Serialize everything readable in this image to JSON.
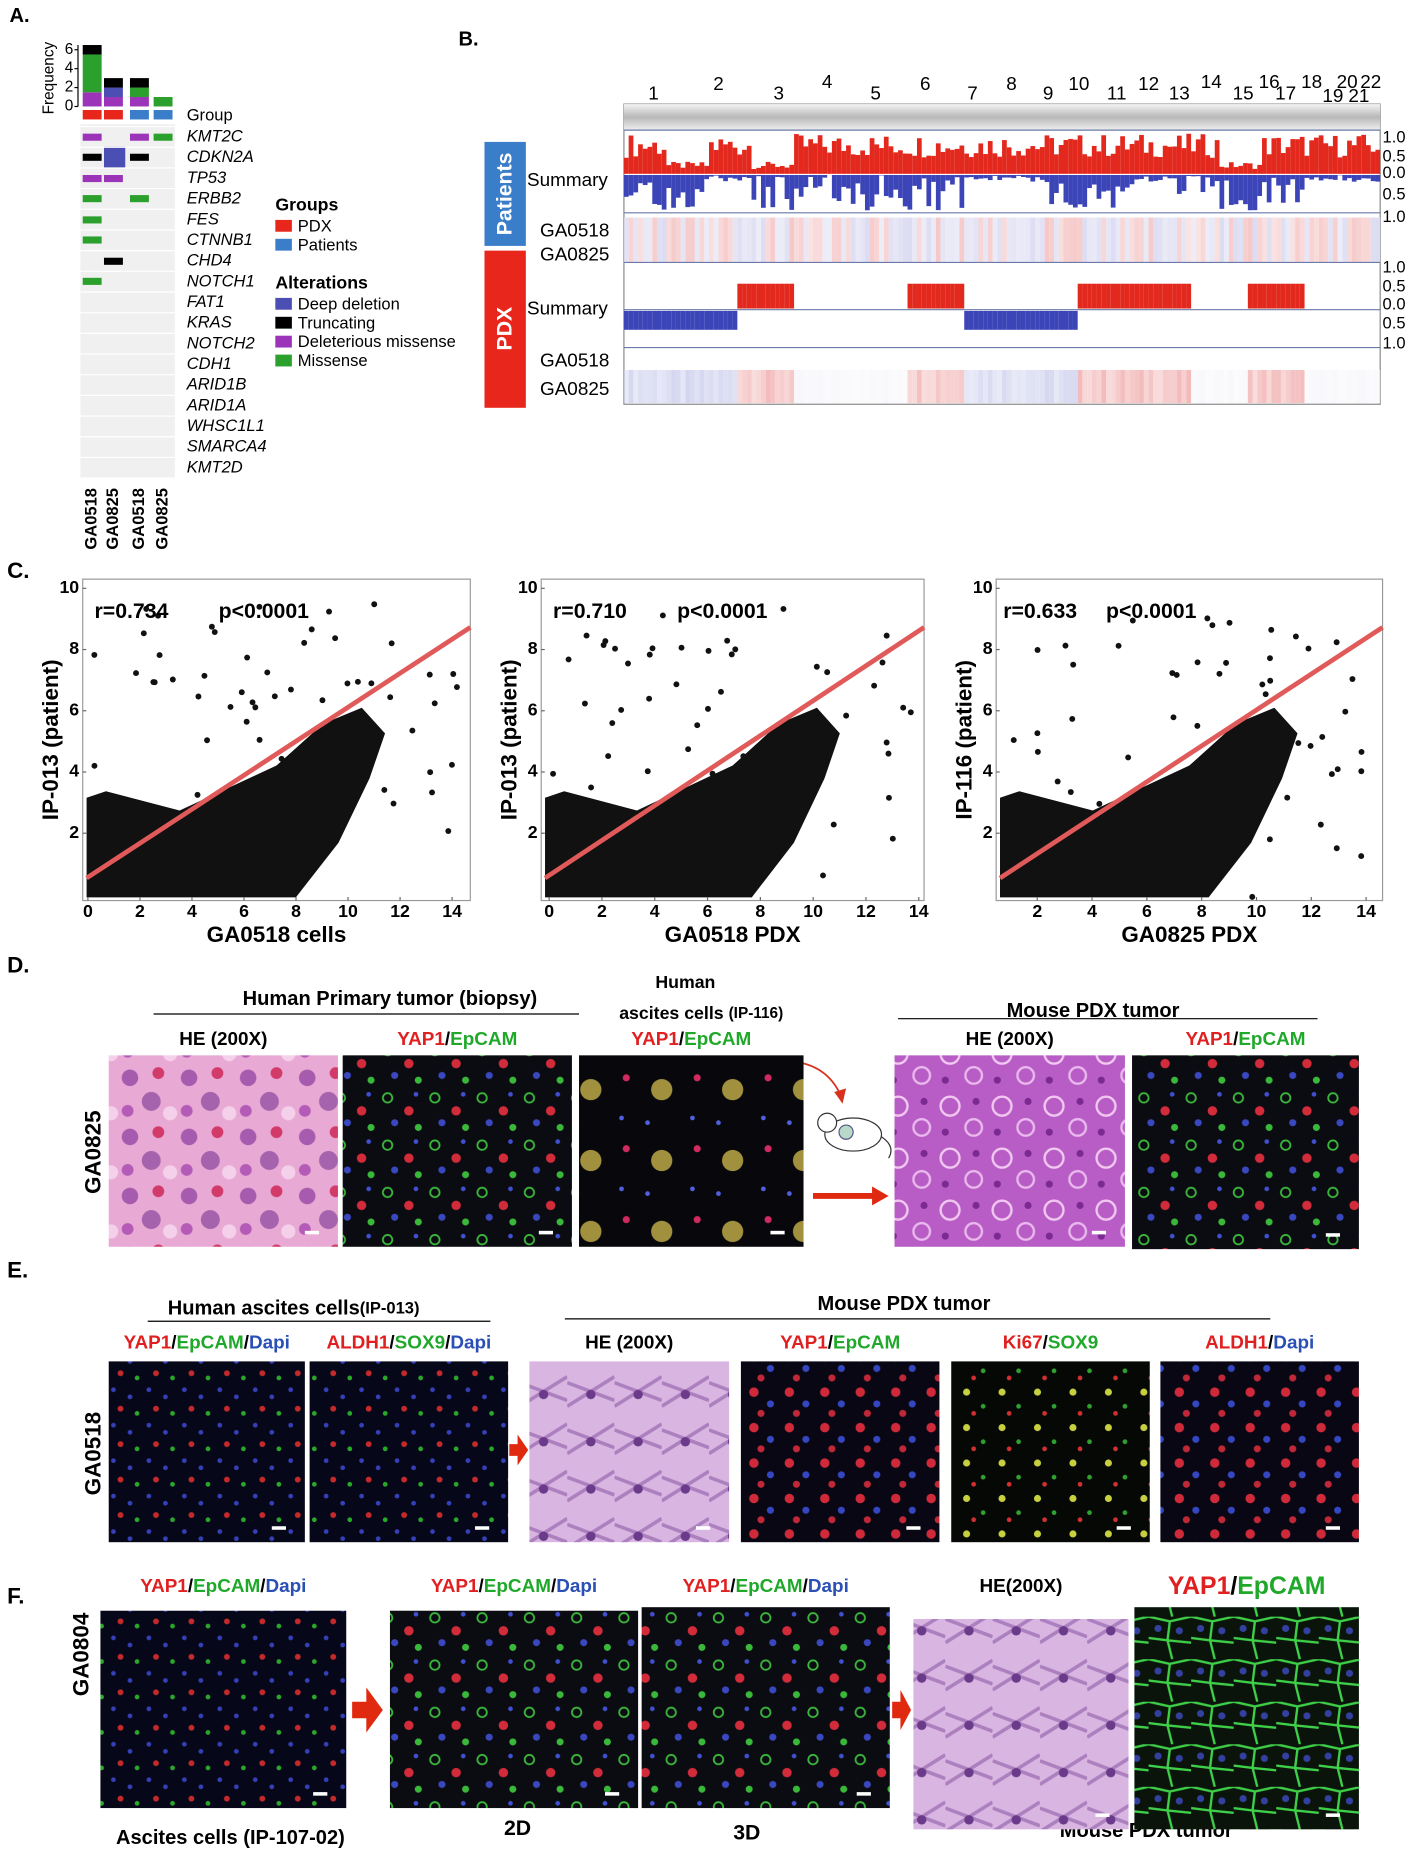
{
  "panel_labels": {
    "a": "A.",
    "b": "B.",
    "c": "C.",
    "d": "D.",
    "e": "E.",
    "f": "F."
  },
  "panel_a": {
    "frequency": {
      "ylabel": "Frequency",
      "ylim": [
        0,
        7
      ],
      "yticks": [
        0,
        2,
        4,
        6
      ],
      "series": [
        {
          "name": "Deep deletion",
          "color": "#4b4fb3",
          "values": [
            0,
            1,
            0,
            0
          ]
        },
        {
          "name": "Truncating",
          "color": "#000000",
          "values": [
            1,
            1,
            1,
            0
          ]
        },
        {
          "name": "Deleterious missense",
          "color": "#9b34b8",
          "values": [
            1.5,
            1,
            1,
            0
          ]
        },
        {
          "name": "Missense",
          "color": "#2ca02c",
          "values": [
            4,
            0,
            1,
            1
          ]
        }
      ]
    },
    "group_label": "Group",
    "genes": [
      "KMT2C",
      "CDKN2A",
      "TP53",
      "ERBB2",
      "FES",
      "CTNNB1",
      "CHD4",
      "NOTCH1",
      "FAT1",
      "KRAS",
      "NOTCH2",
      "CDH1",
      "ARID1B",
      "ARID1A",
      "WHSC1L1",
      "SMARCA4",
      "KMT2D"
    ],
    "columns": [
      "GA0518",
      "GA0825",
      "GA0518",
      "GA0825"
    ],
    "groups_title": "Groups",
    "groups": [
      {
        "name": "PDX",
        "color": "#e8261c"
      },
      {
        "name": "Patients",
        "color": "#3a7dc9"
      }
    ],
    "alterations_title": "Alterations"
  },
  "panel_b": {
    "chromosomes": [
      "1",
      "2",
      "3",
      "4",
      "5",
      "6",
      "7",
      "8",
      "9",
      "10",
      "11",
      "12",
      "13",
      "14",
      "15",
      "16",
      "17",
      "18",
      "19",
      "20",
      "21",
      "22"
    ],
    "groups": [
      "Patients",
      "PDX"
    ],
    "rows": [
      "Summary",
      "GA0518",
      "GA0825"
    ],
    "scale_labels": [
      "1.0",
      "0.5",
      "0.0",
      "0.5",
      "1.0"
    ]
  },
  "panel_c": [
    {
      "r": "r=0.734",
      "p": "p<0.0001",
      "xlabel": "GA0518 cells",
      "ylabel": "IP-013 (patient)",
      "xlim": [
        -0.2,
        14.7
      ],
      "ylim": [
        -0.2,
        10.3
      ],
      "xticks": [
        0,
        2,
        4,
        6,
        8,
        10,
        12,
        14
      ],
      "yticks": [
        2,
        4,
        6,
        8,
        10
      ]
    },
    {
      "r": "r=0.710",
      "p": "p<0.0001",
      "xlabel": "GA0518 PDX",
      "ylabel": "IP-013 (patient)",
      "xlim": [
        -0.3,
        14.2
      ],
      "ylim": [
        -0.2,
        10.3
      ],
      "xticks": [
        0,
        2,
        4,
        6,
        8,
        10,
        12,
        14
      ],
      "yticks": [
        2,
        4,
        6,
        8,
        10
      ]
    },
    {
      "r": "r=0.633",
      "p": "p<0.0001",
      "xlabel": "GA0825 PDX",
      "ylabel": "IP-116 (patient)",
      "xlim": [
        0.5,
        14.6
      ],
      "ylim": [
        -0.2,
        10.3
      ],
      "xticks": [
        2,
        4,
        6,
        8,
        10,
        12,
        14
      ],
      "yticks": [
        2,
        4,
        6,
        8,
        10
      ]
    }
  ],
  "panel_d": {
    "title_left": "Human Primary tumor (biopsy)",
    "ascites_title": "Human",
    "ascites_sub": "ascites cells",
    "ascites_id": "(IP-116)",
    "title_right": "Mouse PDX tumor",
    "sample": "GA0825",
    "images": [
      {
        "label": [
          {
            "text": "HE (200X)",
            "color": "#000000"
          }
        ]
      },
      {
        "label": [
          {
            "text": "YAP1",
            "color": "#e02020"
          },
          {
            "text": "/",
            "color": "#000000"
          },
          {
            "text": "EpCAM",
            "color": "#1fa82a"
          }
        ]
      },
      {
        "label": [
          {
            "text": "YAP1",
            "color": "#e02020"
          },
          {
            "text": "/",
            "color": "#000000"
          },
          {
            "text": "EpCAM",
            "color": "#1fa82a"
          }
        ]
      },
      {
        "label": [
          {
            "text": "HE (200X)",
            "color": "#000000"
          }
        ]
      },
      {
        "label": [
          {
            "text": "YAP1",
            "color": "#e02020"
          },
          {
            "text": "/",
            "color": "#000000"
          },
          {
            "text": "EpCAM",
            "color": "#1fa82a"
          }
        ]
      }
    ]
  },
  "panel_e": {
    "title_left": "Human ascites cells",
    "title_left_id": "(IP-013)",
    "title_right": "Mouse PDX tumor",
    "sample": "GA0518",
    "images": [
      {
        "label": [
          {
            "text": "YAP1",
            "color": "#e02020"
          },
          {
            "text": "/",
            "color": "#000000"
          },
          {
            "text": "EpCAM",
            "color": "#1fa82a"
          },
          {
            "text": "/",
            "color": "#000000"
          },
          {
            "text": "Dapi",
            "color": "#2a4fb5"
          }
        ]
      },
      {
        "label": [
          {
            "text": "ALDH1",
            "color": "#e02020"
          },
          {
            "text": "/",
            "color": "#000000"
          },
          {
            "text": "SOX9",
            "color": "#1fa82a"
          },
          {
            "text": "/",
            "color": "#000000"
          },
          {
            "text": "Dapi",
            "color": "#2a4fb5"
          }
        ]
      },
      {
        "label": [
          {
            "text": "HE (200X)",
            "color": "#000000"
          }
        ]
      },
      {
        "label": [
          {
            "text": "YAP1",
            "color": "#e02020"
          },
          {
            "text": "/",
            "color": "#000000"
          },
          {
            "text": "EpCAM",
            "color": "#1fa82a"
          }
        ]
      },
      {
        "label": [
          {
            "text": "Ki67",
            "color": "#e02020"
          },
          {
            "text": "/",
            "color": "#000000"
          },
          {
            "text": "SOX9",
            "color": "#1fa82a"
          }
        ]
      },
      {
        "label": [
          {
            "text": "ALDH1",
            "color": "#e02020"
          },
          {
            "text": "/",
            "color": "#000000"
          },
          {
            "text": "Dapi",
            "color": "#2a4fb5"
          }
        ]
      }
    ]
  },
  "panel_f": {
    "sample": "GA0804",
    "captions": [
      "Ascites cells (IP-107-02)",
      "2D",
      "3D",
      "Mouse PDX tumor"
    ],
    "images": [
      {
        "label": [
          {
            "text": "YAP1",
            "color": "#e02020"
          },
          {
            "text": "/",
            "color": "#000000"
          },
          {
            "text": "EpCAM",
            "color": "#1fa82a"
          },
          {
            "text": "/",
            "color": "#000000"
          },
          {
            "text": "Dapi",
            "color": "#2a4fb5"
          }
        ]
      },
      {
        "label": [
          {
            "text": "YAP1",
            "color": "#e02020"
          },
          {
            "text": "/",
            "color": "#000000"
          },
          {
            "text": "EpCAM",
            "color": "#1fa82a"
          },
          {
            "text": "/",
            "color": "#000000"
          },
          {
            "text": "Dapi",
            "color": "#2a4fb5"
          }
        ]
      },
      {
        "label": [
          {
            "text": "YAP1",
            "color": "#e02020"
          },
          {
            "text": "/",
            "color": "#000000"
          },
          {
            "text": "EpCAM",
            "color": "#1fa82a"
          },
          {
            "text": "/",
            "color": "#000000"
          },
          {
            "text": "Dapi",
            "color": "#2a4fb5"
          }
        ]
      },
      {
        "label": [
          {
            "text": "HE(200X)",
            "color": "#000000"
          }
        ]
      },
      {
        "label": [
          {
            "text": "YAP1",
            "color": "#e02020"
          },
          {
            "text": "/",
            "color": "#000000"
          },
          {
            "text": "EpCAM",
            "color": "#1fa82a"
          }
        ]
      }
    ]
  }
}
